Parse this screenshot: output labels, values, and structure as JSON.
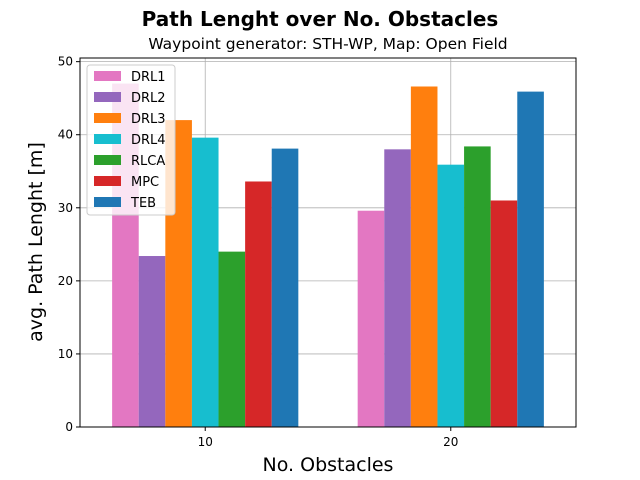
{
  "chart_data": {
    "type": "bar",
    "title": "Path Lenght over No. Obstacles",
    "subtitle": "Waypoint generator: STH-WP, Map: Open Field",
    "xlabel": "No. Obstacles",
    "ylabel": "avg. Path Lenght [m]",
    "categories": [
      "10",
      "20"
    ],
    "ylim": [
      0,
      50.5
    ],
    "yticks": [
      0,
      10,
      20,
      30,
      40,
      50
    ],
    "grid": true,
    "legend_position": "top-left",
    "series": [
      {
        "name": "DRL1",
        "color": "#e377c2",
        "values": [
          47.0,
          29.6
        ]
      },
      {
        "name": "DRL2",
        "color": "#9467bd",
        "values": [
          23.4,
          38.0
        ]
      },
      {
        "name": "DRL3",
        "color": "#ff7f0e",
        "values": [
          42.0,
          46.6
        ]
      },
      {
        "name": "DRL4",
        "color": "#17becf",
        "values": [
          39.6,
          35.9
        ]
      },
      {
        "name": "RLCA",
        "color": "#2ca02c",
        "values": [
          24.0,
          38.4
        ]
      },
      {
        "name": "MPC",
        "color": "#d62728",
        "values": [
          33.6,
          31.0
        ]
      },
      {
        "name": "TEB",
        "color": "#1f77b4",
        "values": [
          38.1,
          45.9
        ]
      }
    ]
  }
}
